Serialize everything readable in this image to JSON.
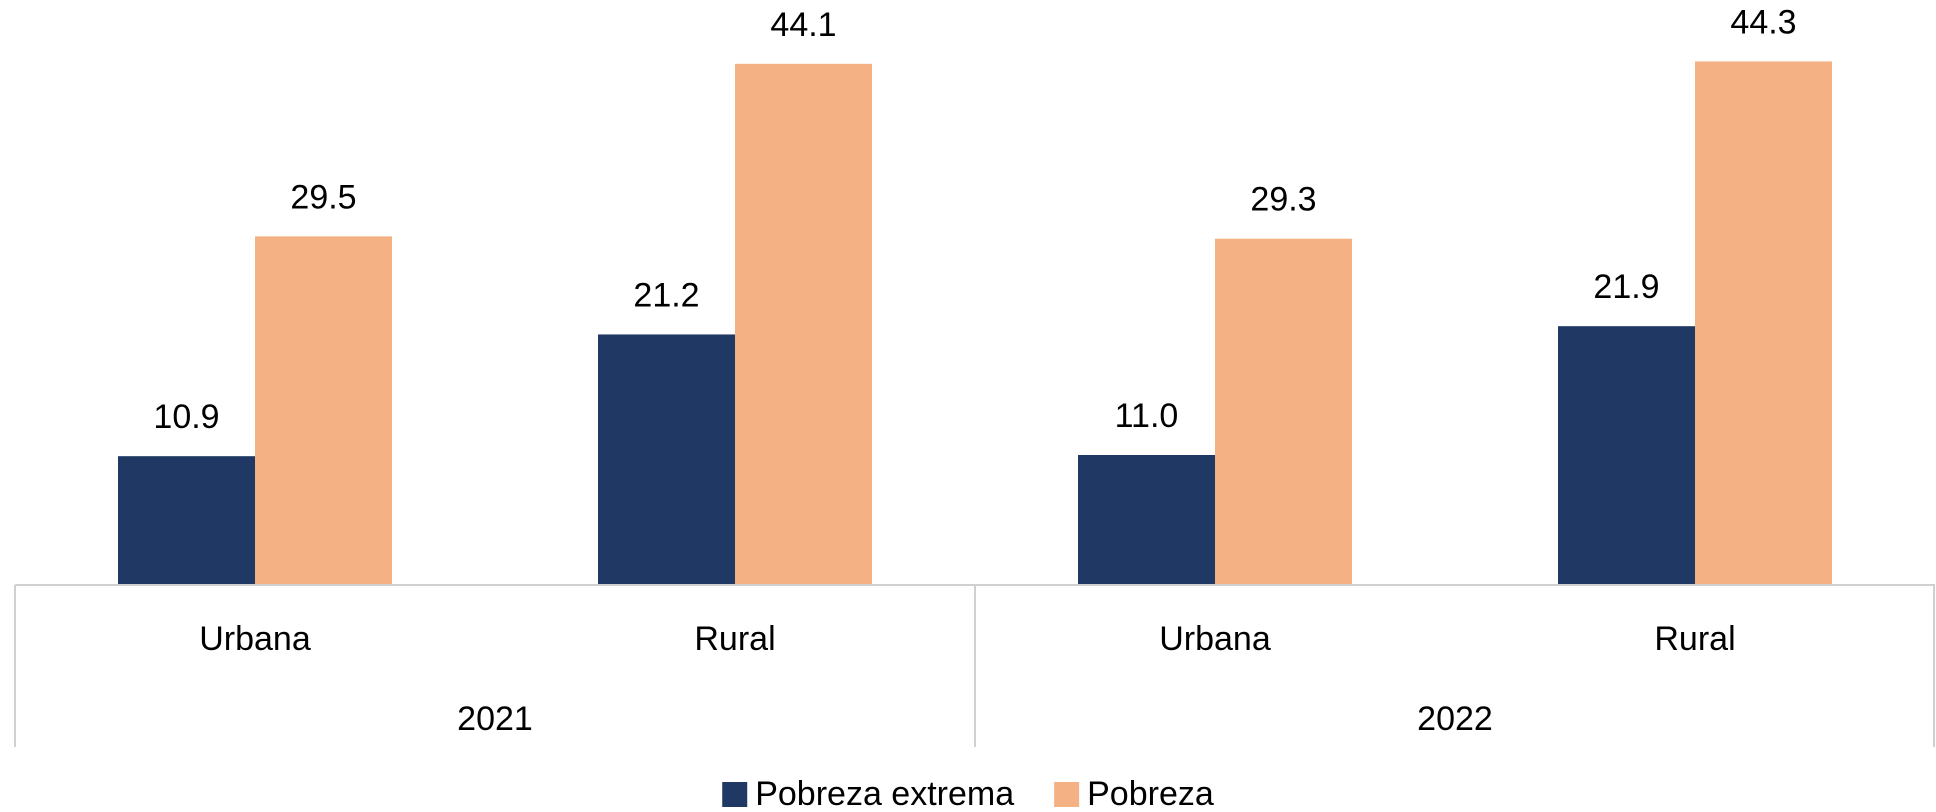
{
  "chart_data": {
    "type": "bar",
    "categories": [
      "Urbana",
      "Rural",
      "Urbana",
      "Rural"
    ],
    "groups": [
      "2021",
      "2022"
    ],
    "series": [
      {
        "name": "Pobreza extrema",
        "color": "#203864",
        "values": [
          10.9,
          21.2,
          11.0,
          21.9
        ],
        "value_labels": [
          "10.9",
          "21.2",
          "11.0",
          "21.9"
        ]
      },
      {
        "name": "Pobreza",
        "color": "#f4b183",
        "values": [
          29.5,
          44.1,
          29.3,
          44.3
        ],
        "value_labels": [
          "29.5",
          "44.1",
          "29.3",
          "44.3"
        ]
      }
    ],
    "ylim": [
      0,
      49.5
    ],
    "legend": "bottom"
  }
}
